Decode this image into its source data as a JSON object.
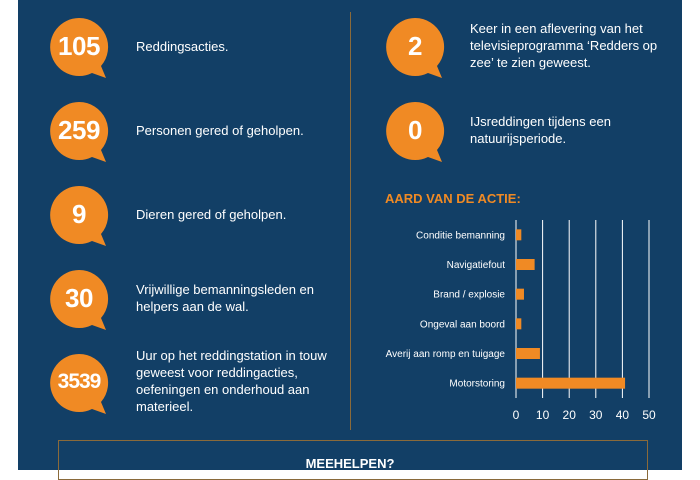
{
  "stats_left": [
    {
      "value": "105",
      "text": "Reddingsacties."
    },
    {
      "value": "259",
      "text": "Personen gered of geholpen."
    },
    {
      "value": "9",
      "text": "Dieren gered of geholpen."
    },
    {
      "value": "30",
      "text": "Vrijwillige bemanningsleden en helpers aan de wal."
    },
    {
      "value": "3539",
      "text": "Uur op het reddingstation in touw geweest voor reddingacties, oefeningen en onderhoud aan materieel."
    }
  ],
  "stats_right": [
    {
      "value": "2",
      "text": "Keer in een aflevering van het televisieprogramma ‘Redders op zee’ te zien geweest."
    },
    {
      "value": "0",
      "text": "IJsreddingen tijdens een natuurijsperiode."
    }
  ],
  "chart_title": "AARD VAN DE ACTIE:",
  "chart_data": {
    "type": "bar",
    "orientation": "horizontal",
    "categories": [
      "Conditie bemanning",
      "Navigatiefout",
      "Brand / explosie",
      "Ongeval aan boord",
      "Averij aan romp en tuigage",
      "Motorstoring"
    ],
    "values": [
      2,
      7,
      3,
      2,
      9,
      41
    ],
    "xlim": [
      0,
      50
    ],
    "xticks": [
      0,
      10,
      20,
      30,
      40,
      50
    ],
    "grid": true,
    "bar_color": "#f08a24"
  },
  "footer": {
    "title": "MEEHELPEN?"
  },
  "colors": {
    "background": "#123f66",
    "accent": "#f08a24",
    "divider": "#8a6a3a",
    "text": "#ffffff"
  }
}
